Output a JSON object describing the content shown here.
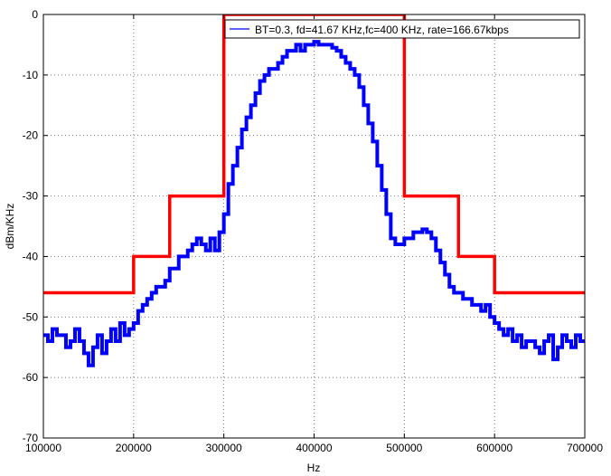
{
  "chart_data": {
    "type": "line",
    "title": "",
    "xlabel": "Hz",
    "ylabel": "dBm/KHz",
    "xlim": [
      100000,
      700000
    ],
    "ylim": [
      -70,
      0
    ],
    "xticks": [
      100000,
      200000,
      300000,
      400000,
      500000,
      600000,
      700000
    ],
    "yticks": [
      0,
      -10,
      -20,
      -30,
      -40,
      -50,
      -60,
      -70
    ],
    "grid": true,
    "grid_style": "dotted",
    "legend_position": "top-right",
    "series": [
      {
        "name": "BT=0.3, fd=41.67 KHz,fc=400 KHz, rate=166.67kbps",
        "legend": true,
        "color": "#0000ff",
        "style": "step",
        "x": [
          100000,
          105000,
          110000,
          115000,
          120000,
          125000,
          130000,
          135000,
          140000,
          145000,
          150000,
          155000,
          160000,
          165000,
          170000,
          175000,
          180000,
          185000,
          190000,
          195000,
          200000,
          205000,
          210000,
          215000,
          220000,
          225000,
          230000,
          235000,
          240000,
          245000,
          250000,
          255000,
          260000,
          265000,
          270000,
          275000,
          280000,
          285000,
          290000,
          295000,
          300000,
          305000,
          310000,
          315000,
          320000,
          325000,
          330000,
          335000,
          340000,
          345000,
          350000,
          355000,
          360000,
          365000,
          370000,
          375000,
          380000,
          385000,
          390000,
          395000,
          400000,
          405000,
          410000,
          415000,
          420000,
          425000,
          430000,
          435000,
          440000,
          445000,
          450000,
          455000,
          460000,
          465000,
          470000,
          475000,
          480000,
          485000,
          490000,
          495000,
          500000,
          505000,
          510000,
          515000,
          520000,
          525000,
          530000,
          535000,
          540000,
          545000,
          550000,
          555000,
          560000,
          565000,
          570000,
          575000,
          580000,
          585000,
          590000,
          595000,
          600000,
          605000,
          610000,
          615000,
          620000,
          625000,
          630000,
          635000,
          640000,
          645000,
          650000,
          655000,
          660000,
          665000,
          670000,
          675000,
          680000,
          685000,
          690000,
          695000,
          700000
        ],
        "y": [
          -53,
          -54,
          -52,
          -53,
          -53,
          -55,
          -54,
          -52,
          -54,
          -56,
          -58,
          -55,
          -53,
          -56,
          -54,
          -52,
          -54,
          -51,
          -53,
          -52,
          -51,
          -49,
          -48,
          -47,
          -46,
          -45,
          -45,
          -44,
          -42,
          -42,
          -40,
          -40,
          -39,
          -38,
          -37,
          -38,
          -39,
          -37,
          -39,
          -36,
          -33,
          -28,
          -25,
          -22,
          -19,
          -17,
          -15,
          -13,
          -11,
          -10,
          -9,
          -9,
          -8,
          -7,
          -6,
          -6,
          -5,
          -6,
          -5,
          -5,
          -4.5,
          -5,
          -5,
          -5,
          -5.5,
          -6,
          -7,
          -8,
          -9,
          -10,
          -12,
          -15,
          -18,
          -21,
          -25,
          -29,
          -33,
          -37,
          -38,
          -38,
          -37,
          -37,
          -36,
          -36,
          -35.5,
          -36,
          -37,
          -39,
          -41,
          -43,
          -45,
          -46,
          -46,
          -47,
          -47,
          -48,
          -48,
          -49,
          -48,
          -50,
          -51,
          -52,
          -53,
          -52,
          -54,
          -53,
          -55,
          -54,
          -54,
          -55,
          -56,
          -54,
          -53,
          -57,
          -55,
          -53,
          -54,
          -55,
          -53,
          -54,
          -54
        ]
      },
      {
        "name": "",
        "legend": false,
        "color": "#ff0000",
        "style": "step",
        "x": [
          100000,
          200000,
          200000,
          240000,
          240000,
          300000,
          300000,
          500000,
          500000,
          560000,
          560000,
          600000,
          600000,
          700000
        ],
        "y": [
          -46,
          -46,
          -40,
          -40,
          -30,
          -30,
          0,
          0,
          -30,
          -30,
          -40,
          -40,
          -46,
          -46
        ]
      }
    ]
  }
}
